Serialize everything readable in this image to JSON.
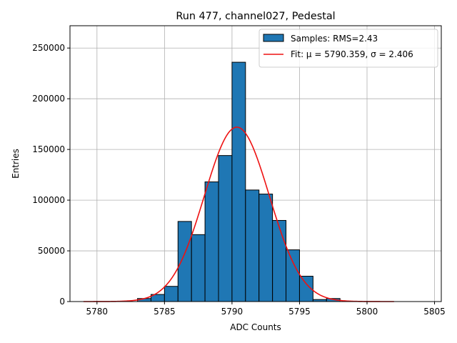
{
  "chart_data": {
    "type": "bar",
    "title": "Run 477, channel027, Pedestal",
    "xlabel": "ADC Counts",
    "ylabel": "Entries",
    "xlim": [
      5778,
      5805.5
    ],
    "ylim": [
      0,
      272000
    ],
    "xticks": [
      5780,
      5785,
      5790,
      5795,
      5800,
      5805
    ],
    "yticks": [
      0,
      50000,
      100000,
      150000,
      200000,
      250000
    ],
    "grid": true,
    "legend_position": "top-right",
    "bins": [
      {
        "left": 5783.0,
        "right": 5784.0,
        "value": 3000
      },
      {
        "left": 5784.0,
        "right": 5785.0,
        "value": 7000
      },
      {
        "left": 5785.0,
        "right": 5786.0,
        "value": 15000
      },
      {
        "left": 5786.0,
        "right": 5787.0,
        "value": 79000
      },
      {
        "left": 5787.0,
        "right": 5788.0,
        "value": 66000
      },
      {
        "left": 5788.0,
        "right": 5789.0,
        "value": 118000
      },
      {
        "left": 5789.0,
        "right": 5790.0,
        "value": 144000
      },
      {
        "left": 5790.0,
        "right": 5791.0,
        "value": 236000
      },
      {
        "left": 5791.0,
        "right": 5792.0,
        "value": 110000
      },
      {
        "left": 5792.0,
        "right": 5793.0,
        "value": 106000
      },
      {
        "left": 5793.0,
        "right": 5794.0,
        "value": 80000
      },
      {
        "left": 5794.0,
        "right": 5795.0,
        "value": 51000
      },
      {
        "left": 5795.0,
        "right": 5796.0,
        "value": 25000
      },
      {
        "left": 5796.0,
        "right": 5797.0,
        "value": 2000
      },
      {
        "left": 5797.0,
        "right": 5798.0,
        "value": 3000
      }
    ],
    "series": [
      {
        "name": "Samples: RMS=2.43",
        "kind": "histogram",
        "color": "#1f77b4"
      },
      {
        "name": "Fit: μ = 5790.359, σ = 2.406",
        "kind": "gaussian_fit",
        "color": "#ee1111",
        "mu": 5790.359,
        "sigma": 2.406,
        "amplitude": 172000,
        "x_range": [
          5779,
          5802
        ]
      }
    ]
  }
}
